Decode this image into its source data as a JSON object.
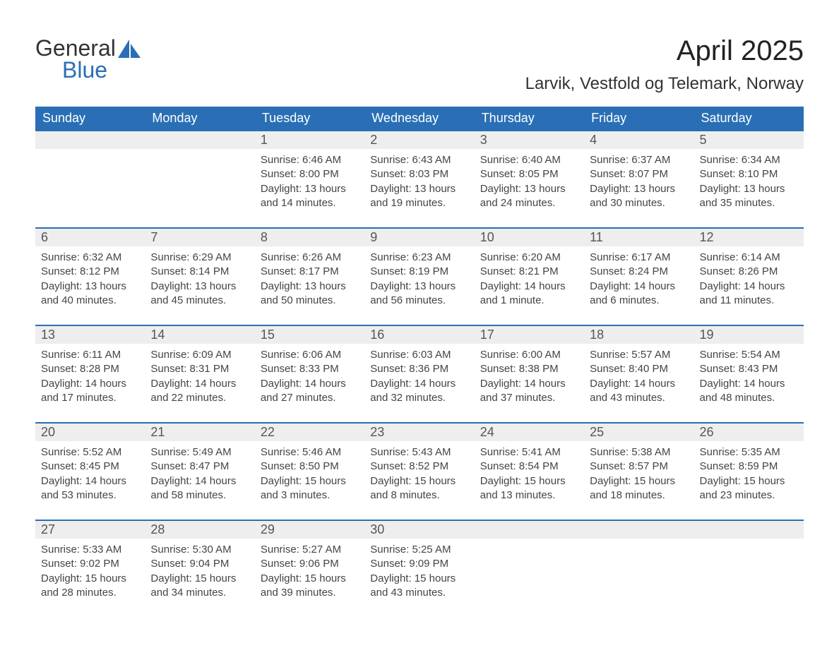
{
  "logo": {
    "text1": "General",
    "text2": "Blue",
    "accent": "#2a6fb5"
  },
  "title": "April 2025",
  "location": "Larvik, Vestfold og Telemark, Norway",
  "colors": {
    "header_bg": "#2a6fb5",
    "header_text": "#ffffff",
    "daynum_bg": "#eeeeee",
    "row_border": "#2a6fb5",
    "body_text": "#444444",
    "page_bg": "#ffffff"
  },
  "days_of_week": [
    "Sunday",
    "Monday",
    "Tuesday",
    "Wednesday",
    "Thursday",
    "Friday",
    "Saturday"
  ],
  "weeks": [
    [
      null,
      null,
      {
        "n": "1",
        "sunrise": "Sunrise: 6:46 AM",
        "sunset": "Sunset: 8:00 PM",
        "day1": "Daylight: 13 hours",
        "day2": "and 14 minutes."
      },
      {
        "n": "2",
        "sunrise": "Sunrise: 6:43 AM",
        "sunset": "Sunset: 8:03 PM",
        "day1": "Daylight: 13 hours",
        "day2": "and 19 minutes."
      },
      {
        "n": "3",
        "sunrise": "Sunrise: 6:40 AM",
        "sunset": "Sunset: 8:05 PM",
        "day1": "Daylight: 13 hours",
        "day2": "and 24 minutes."
      },
      {
        "n": "4",
        "sunrise": "Sunrise: 6:37 AM",
        "sunset": "Sunset: 8:07 PM",
        "day1": "Daylight: 13 hours",
        "day2": "and 30 minutes."
      },
      {
        "n": "5",
        "sunrise": "Sunrise: 6:34 AM",
        "sunset": "Sunset: 8:10 PM",
        "day1": "Daylight: 13 hours",
        "day2": "and 35 minutes."
      }
    ],
    [
      {
        "n": "6",
        "sunrise": "Sunrise: 6:32 AM",
        "sunset": "Sunset: 8:12 PM",
        "day1": "Daylight: 13 hours",
        "day2": "and 40 minutes."
      },
      {
        "n": "7",
        "sunrise": "Sunrise: 6:29 AM",
        "sunset": "Sunset: 8:14 PM",
        "day1": "Daylight: 13 hours",
        "day2": "and 45 minutes."
      },
      {
        "n": "8",
        "sunrise": "Sunrise: 6:26 AM",
        "sunset": "Sunset: 8:17 PM",
        "day1": "Daylight: 13 hours",
        "day2": "and 50 minutes."
      },
      {
        "n": "9",
        "sunrise": "Sunrise: 6:23 AM",
        "sunset": "Sunset: 8:19 PM",
        "day1": "Daylight: 13 hours",
        "day2": "and 56 minutes."
      },
      {
        "n": "10",
        "sunrise": "Sunrise: 6:20 AM",
        "sunset": "Sunset: 8:21 PM",
        "day1": "Daylight: 14 hours",
        "day2": "and 1 minute."
      },
      {
        "n": "11",
        "sunrise": "Sunrise: 6:17 AM",
        "sunset": "Sunset: 8:24 PM",
        "day1": "Daylight: 14 hours",
        "day2": "and 6 minutes."
      },
      {
        "n": "12",
        "sunrise": "Sunrise: 6:14 AM",
        "sunset": "Sunset: 8:26 PM",
        "day1": "Daylight: 14 hours",
        "day2": "and 11 minutes."
      }
    ],
    [
      {
        "n": "13",
        "sunrise": "Sunrise: 6:11 AM",
        "sunset": "Sunset: 8:28 PM",
        "day1": "Daylight: 14 hours",
        "day2": "and 17 minutes."
      },
      {
        "n": "14",
        "sunrise": "Sunrise: 6:09 AM",
        "sunset": "Sunset: 8:31 PM",
        "day1": "Daylight: 14 hours",
        "day2": "and 22 minutes."
      },
      {
        "n": "15",
        "sunrise": "Sunrise: 6:06 AM",
        "sunset": "Sunset: 8:33 PM",
        "day1": "Daylight: 14 hours",
        "day2": "and 27 minutes."
      },
      {
        "n": "16",
        "sunrise": "Sunrise: 6:03 AM",
        "sunset": "Sunset: 8:36 PM",
        "day1": "Daylight: 14 hours",
        "day2": "and 32 minutes."
      },
      {
        "n": "17",
        "sunrise": "Sunrise: 6:00 AM",
        "sunset": "Sunset: 8:38 PM",
        "day1": "Daylight: 14 hours",
        "day2": "and 37 minutes."
      },
      {
        "n": "18",
        "sunrise": "Sunrise: 5:57 AM",
        "sunset": "Sunset: 8:40 PM",
        "day1": "Daylight: 14 hours",
        "day2": "and 43 minutes."
      },
      {
        "n": "19",
        "sunrise": "Sunrise: 5:54 AM",
        "sunset": "Sunset: 8:43 PM",
        "day1": "Daylight: 14 hours",
        "day2": "and 48 minutes."
      }
    ],
    [
      {
        "n": "20",
        "sunrise": "Sunrise: 5:52 AM",
        "sunset": "Sunset: 8:45 PM",
        "day1": "Daylight: 14 hours",
        "day2": "and 53 minutes."
      },
      {
        "n": "21",
        "sunrise": "Sunrise: 5:49 AM",
        "sunset": "Sunset: 8:47 PM",
        "day1": "Daylight: 14 hours",
        "day2": "and 58 minutes."
      },
      {
        "n": "22",
        "sunrise": "Sunrise: 5:46 AM",
        "sunset": "Sunset: 8:50 PM",
        "day1": "Daylight: 15 hours",
        "day2": "and 3 minutes."
      },
      {
        "n": "23",
        "sunrise": "Sunrise: 5:43 AM",
        "sunset": "Sunset: 8:52 PM",
        "day1": "Daylight: 15 hours",
        "day2": "and 8 minutes."
      },
      {
        "n": "24",
        "sunrise": "Sunrise: 5:41 AM",
        "sunset": "Sunset: 8:54 PM",
        "day1": "Daylight: 15 hours",
        "day2": "and 13 minutes."
      },
      {
        "n": "25",
        "sunrise": "Sunrise: 5:38 AM",
        "sunset": "Sunset: 8:57 PM",
        "day1": "Daylight: 15 hours",
        "day2": "and 18 minutes."
      },
      {
        "n": "26",
        "sunrise": "Sunrise: 5:35 AM",
        "sunset": "Sunset: 8:59 PM",
        "day1": "Daylight: 15 hours",
        "day2": "and 23 minutes."
      }
    ],
    [
      {
        "n": "27",
        "sunrise": "Sunrise: 5:33 AM",
        "sunset": "Sunset: 9:02 PM",
        "day1": "Daylight: 15 hours",
        "day2": "and 28 minutes."
      },
      {
        "n": "28",
        "sunrise": "Sunrise: 5:30 AM",
        "sunset": "Sunset: 9:04 PM",
        "day1": "Daylight: 15 hours",
        "day2": "and 34 minutes."
      },
      {
        "n": "29",
        "sunrise": "Sunrise: 5:27 AM",
        "sunset": "Sunset: 9:06 PM",
        "day1": "Daylight: 15 hours",
        "day2": "and 39 minutes."
      },
      {
        "n": "30",
        "sunrise": "Sunrise: 5:25 AM",
        "sunset": "Sunset: 9:09 PM",
        "day1": "Daylight: 15 hours",
        "day2": "and 43 minutes."
      },
      null,
      null,
      null
    ]
  ]
}
